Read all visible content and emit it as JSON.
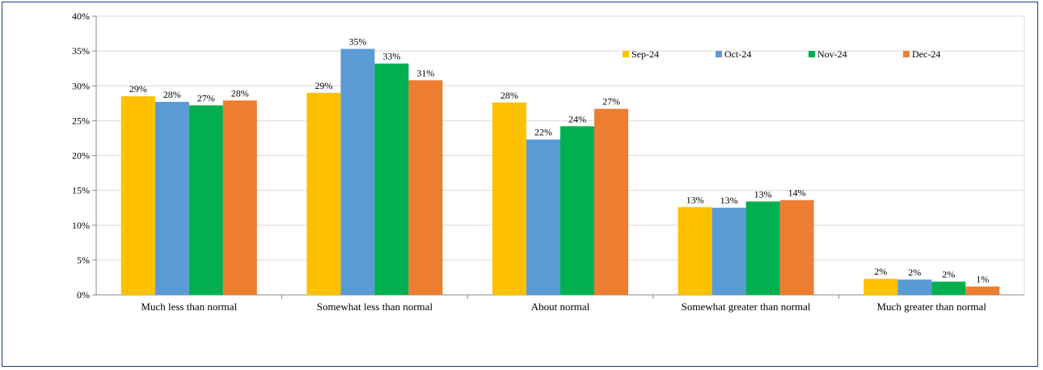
{
  "chart_data": {
    "type": "bar",
    "categories": [
      "Much less than normal",
      "Somewhat less than normal",
      "About normal",
      "Somewhat greater than normal",
      "Much greater than normal"
    ],
    "series": [
      {
        "name": "Sep-24",
        "color": "#ffc000",
        "values": [
          28.5,
          29.0,
          27.6,
          12.6,
          2.3
        ],
        "labels": [
          "29%",
          "29%",
          "28%",
          "13%",
          "2%"
        ]
      },
      {
        "name": "Oct-24",
        "color": "#5b9bd5",
        "values": [
          27.7,
          35.3,
          22.3,
          12.5,
          2.2
        ],
        "labels": [
          "28%",
          "35%",
          "22%",
          "13%",
          "2%"
        ]
      },
      {
        "name": "Nov-24",
        "color": "#00b050",
        "values": [
          27.2,
          33.2,
          24.2,
          13.4,
          1.9
        ],
        "labels": [
          "27%",
          "33%",
          "24%",
          "13%",
          "2%"
        ]
      },
      {
        "name": "Dec-24",
        "color": "#ed7d31",
        "values": [
          27.9,
          30.8,
          26.7,
          13.6,
          1.2
        ],
        "labels": [
          "28%",
          "31%",
          "27%",
          "14%",
          "1%"
        ]
      }
    ],
    "ylim": [
      0,
      40
    ],
    "yticks": [
      0,
      5,
      10,
      15,
      20,
      25,
      30,
      35,
      40
    ],
    "ytick_labels": [
      "0%",
      "5%",
      "10%",
      "15%",
      "20%",
      "25%",
      "30%",
      "35%",
      "40%"
    ],
    "grid": true,
    "legend_position": "top-right",
    "title": "",
    "xlabel": "",
    "ylabel": ""
  }
}
